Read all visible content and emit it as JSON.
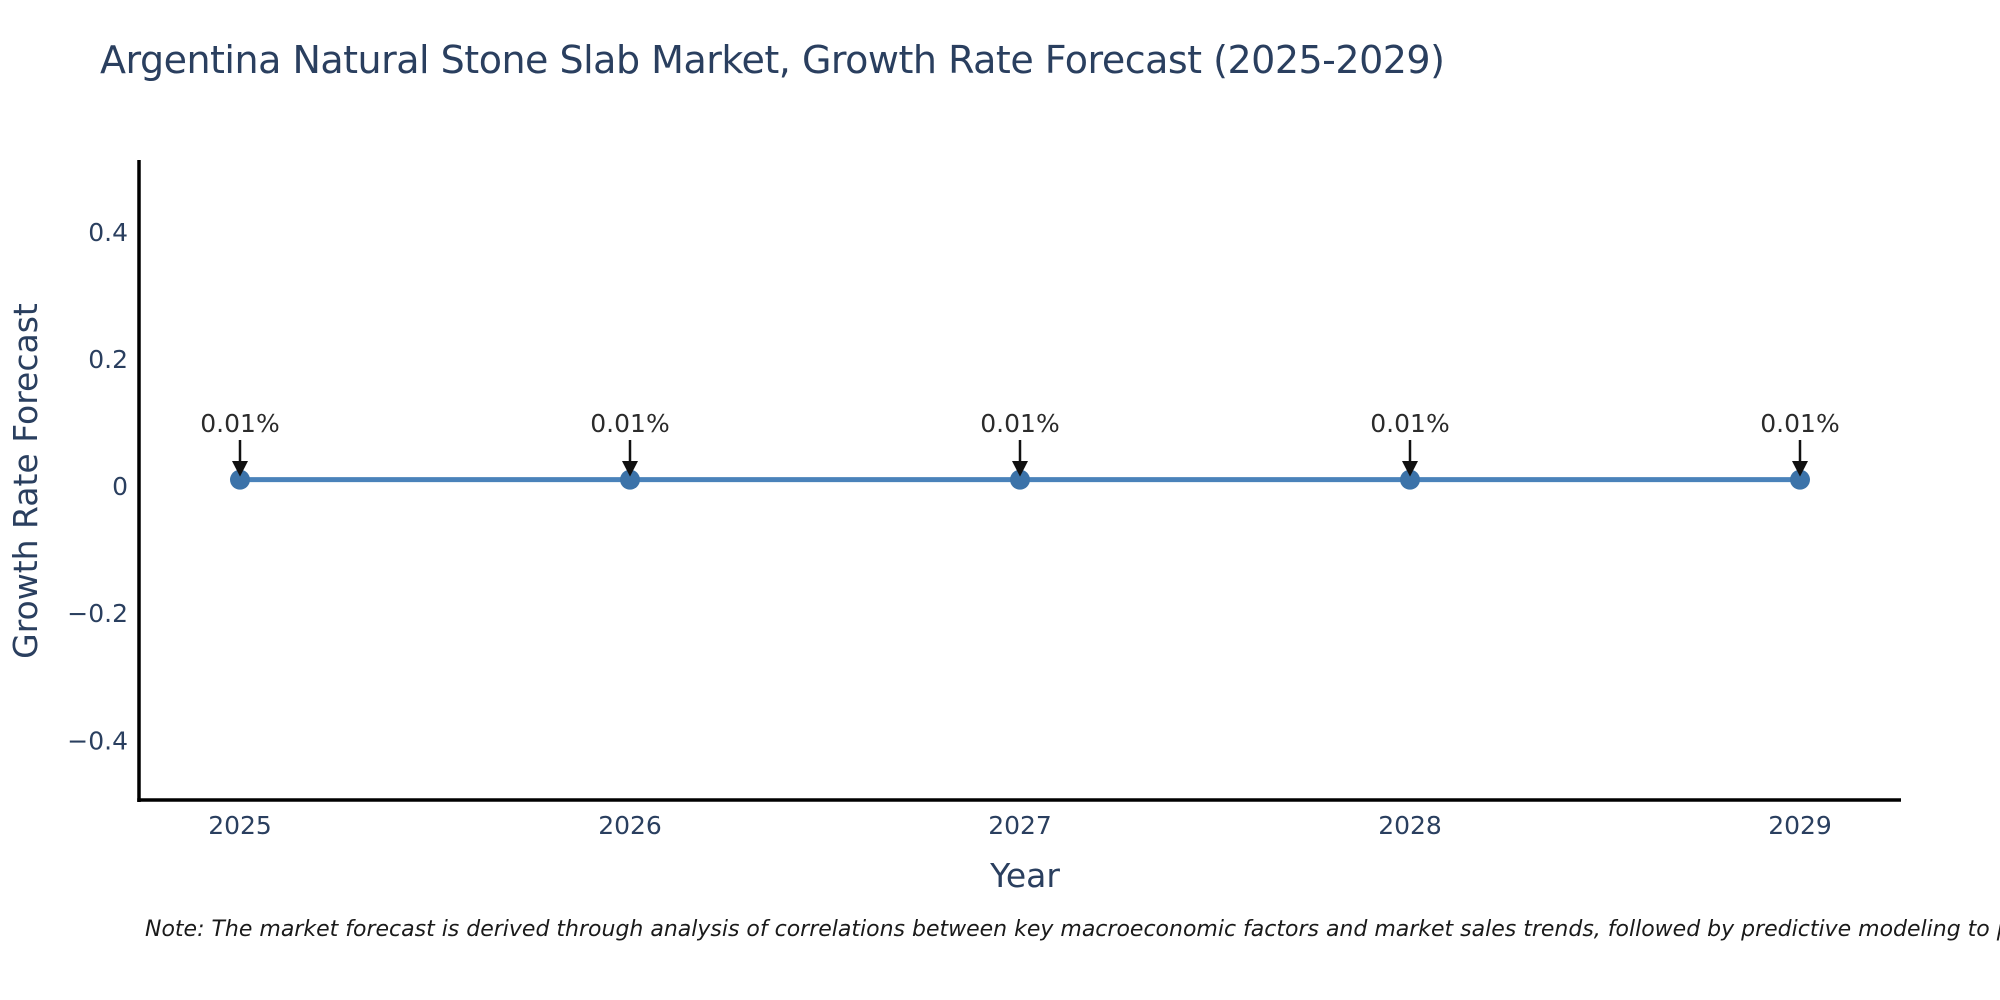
{
  "note": "Note: The market forecast is derived through analysis of correlations between key macroeconomic factors and market sales trends, followed by predictive modeling to project future sales.",
  "chart_data": {
    "type": "line",
    "title": "Argentina Natural Stone Slab Market, Growth Rate Forecast (2025-2029)",
    "xlabel": "Year",
    "ylabel": "Growth Rate Forecast",
    "x": [
      2025,
      2026,
      2027,
      2028,
      2029
    ],
    "series": [
      {
        "name": "Growth Rate Forecast",
        "values": [
          0.01,
          0.01,
          0.01,
          0.01,
          0.01
        ]
      }
    ],
    "point_labels": [
      "0.01%",
      "0.01%",
      "0.01%",
      "0.01%",
      "0.01%"
    ],
    "xtick_labels": [
      "2025",
      "2026",
      "2027",
      "2028",
      "2029"
    ],
    "ytick_values": [
      0.4,
      0.2,
      0,
      -0.2,
      -0.4
    ],
    "ytick_labels": [
      "0.4",
      "0.2",
      "0",
      "−0.2",
      "−0.4"
    ],
    "ylim": [
      -0.494,
      0.513
    ],
    "grid": false,
    "legend_position": "none",
    "annotation_arrow": "down",
    "colors": {
      "line": "#4a82ba",
      "marker": "#3c73a9",
      "axis": "#000000",
      "tick_text": "#2a3f5f",
      "title_text": "#2a3f5f",
      "annotation_text": "#2b2b2b",
      "arrow": "#111111",
      "note_text": "#1a1a1a",
      "background": "#ffffff"
    }
  }
}
